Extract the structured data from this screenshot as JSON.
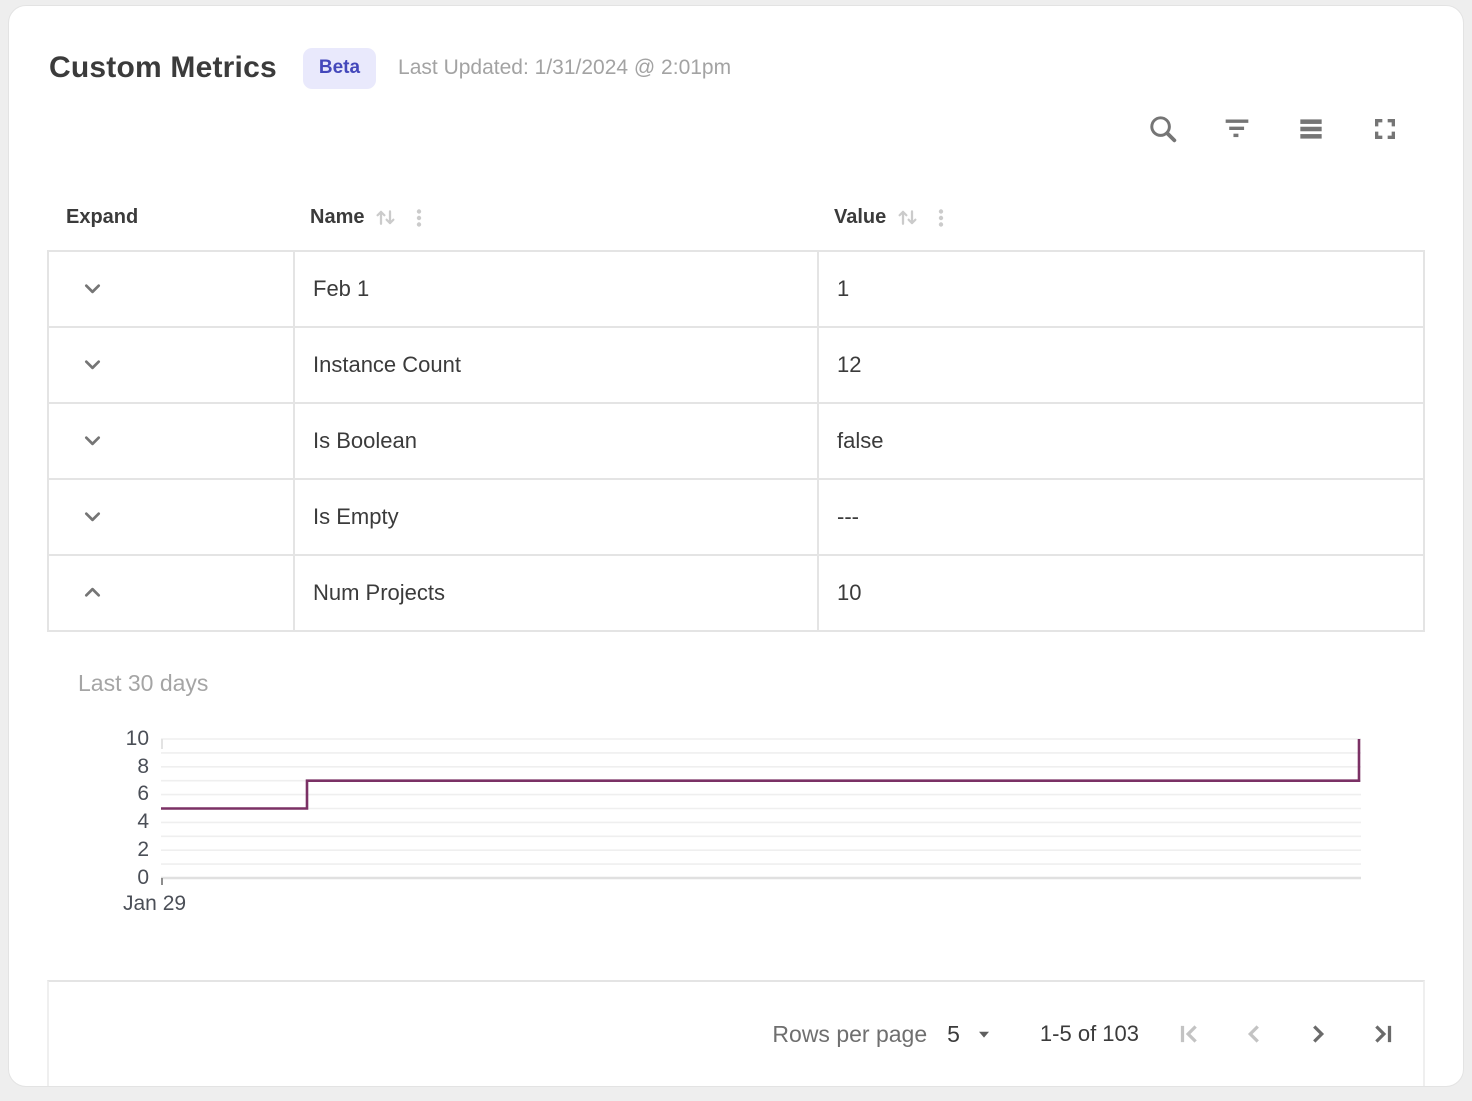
{
  "header": {
    "title": "Custom Metrics",
    "badge": "Beta",
    "last_updated": "Last Updated: 1/31/2024 @ 2:01pm"
  },
  "toolbar": {
    "icons": [
      {
        "name": "search-icon"
      },
      {
        "name": "filter-icon"
      },
      {
        "name": "density-icon"
      },
      {
        "name": "fullscreen-icon"
      }
    ]
  },
  "table": {
    "columns": [
      {
        "label": "Expand",
        "sortable": false
      },
      {
        "label": "Name",
        "sortable": true
      },
      {
        "label": "Value",
        "sortable": true
      }
    ],
    "rows": [
      {
        "name": "Feb 1",
        "value": "1",
        "expanded": false
      },
      {
        "name": "Instance Count",
        "value": "12",
        "expanded": false
      },
      {
        "name": "Is Boolean",
        "value": "false",
        "expanded": false
      },
      {
        "name": "Is Empty",
        "value": "---",
        "expanded": false
      },
      {
        "name": "Num Projects",
        "value": "10",
        "expanded": true
      }
    ]
  },
  "chart_data": {
    "type": "line",
    "line_style": "step",
    "title": "Last 30 days",
    "series": [
      {
        "name": "Num Projects",
        "color": "#7b3165",
        "points": [
          [
            0,
            5
          ],
          [
            3.65,
            5
          ],
          [
            3.65,
            7
          ],
          [
            29.95,
            7
          ],
          [
            29.95,
            10
          ]
        ]
      }
    ],
    "xlim": [
      0,
      30
    ],
    "ylim": [
      0,
      10
    ],
    "y_ticks": [
      0,
      2,
      4,
      6,
      8,
      10
    ],
    "y_gridlines_every": 1,
    "x_tick_labels": [
      {
        "x": 0,
        "label": "Jan 29"
      }
    ],
    "grid": true,
    "legend": false
  },
  "footer": {
    "rows_per_page_label": "Rows per page",
    "rows_per_page_value": "5",
    "range_label": "1-5 of 103",
    "pagination": [
      {
        "name": "first-page",
        "enabled": false
      },
      {
        "name": "previous-page",
        "enabled": false
      },
      {
        "name": "next-page",
        "enabled": true
      },
      {
        "name": "last-page",
        "enabled": true
      }
    ]
  },
  "colors": {
    "accent": "#4448bb",
    "badge_bg": "#e9e9fc",
    "line": "#7b3165",
    "border": "#e4e4e4"
  }
}
